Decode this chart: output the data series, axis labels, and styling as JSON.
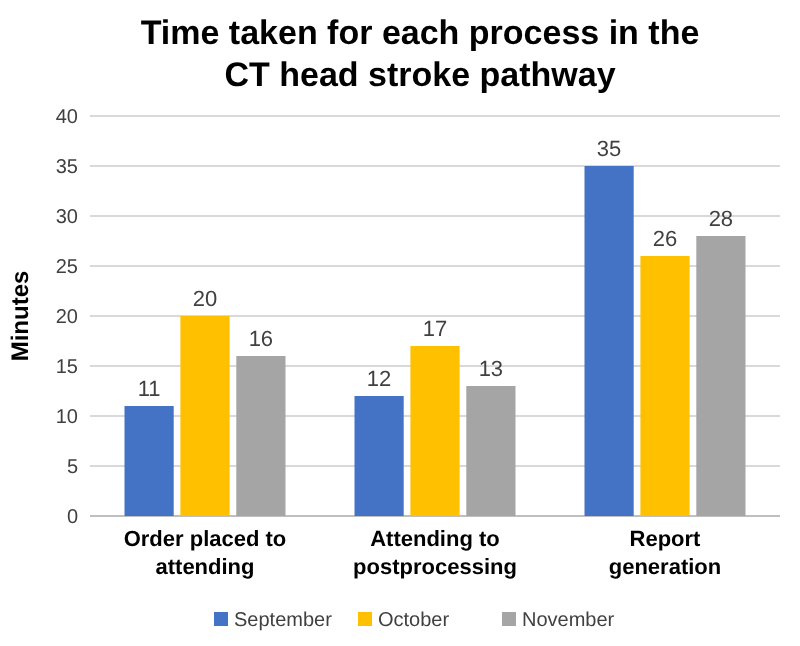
{
  "chart_data": {
    "type": "bar",
    "title": "Time taken for each process in the CT head stroke pathway",
    "ylabel": "Minutes",
    "categories": [
      "Order placed to attending",
      "Attending to postprocessing",
      "Report generation"
    ],
    "series": [
      {
        "name": "September",
        "color": "#4472c4",
        "values": [
          11,
          12,
          35
        ]
      },
      {
        "name": "October",
        "color": "#ffc000",
        "values": [
          20,
          17,
          26
        ]
      },
      {
        "name": "November",
        "color": "#a5a5a5",
        "values": [
          16,
          13,
          28
        ]
      }
    ],
    "ylim": [
      0,
      40
    ],
    "yticks": [
      0,
      5,
      10,
      15,
      20,
      25,
      30,
      35,
      40
    ],
    "grid": "y",
    "legend": "bottom",
    "data_labels": true
  }
}
